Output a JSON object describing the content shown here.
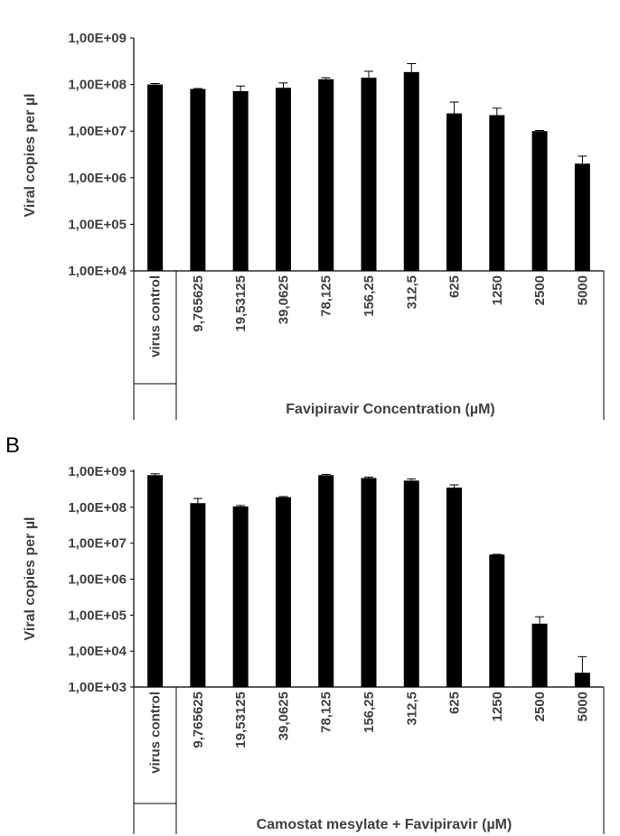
{
  "chart_data": [
    {
      "type": "bar",
      "panel_label": "",
      "ylabel": "Viral copies per  µl",
      "xlabel": "Favipiravir Concentration (µM)",
      "yscale": "log",
      "ylim": [
        10000,
        1000000000
      ],
      "yticks": [
        "1,00E+04",
        "1,00E+05",
        "1,00E+06",
        "1,00E+07",
        "1,00E+08",
        "1,00E+09"
      ],
      "categories": [
        "virus control",
        "9,765625",
        "19,53125",
        "39,0625",
        "78,125",
        "156,25",
        "312,5",
        "625",
        "1250",
        "2500",
        "5000"
      ],
      "values": [
        100000000,
        80000000,
        72000000,
        85000000,
        130000000,
        140000000,
        185000000,
        24000000,
        22000000,
        10000000,
        2000000
      ],
      "error_upper": [
        105000000,
        82000000,
        93000000,
        108000000,
        140000000,
        192000000,
        280000000,
        42000000,
        31000000,
        10300000,
        2900000
      ],
      "grid": false,
      "legend": "none"
    },
    {
      "type": "bar",
      "panel_label": "B",
      "ylabel": "Viral copies per  µl",
      "xlabel": "Camostat mesylate + Favipiravir (µM)",
      "yscale": "log",
      "ylim": [
        1000,
        1000000000
      ],
      "yticks": [
        "1,00E+03",
        "1,00E+04",
        "1,00E+05",
        "1,00E+06",
        "1,00E+07",
        "1,00E+08",
        "1,00E+09"
      ],
      "categories": [
        "virus control",
        "9,765625",
        "19,53125",
        "39,0625",
        "78,125",
        "156,25",
        "312,5",
        "625",
        "1250",
        "2500",
        "5000"
      ],
      "values": [
        780000000,
        130000000,
        105000000,
        190000000,
        780000000,
        650000000,
        550000000,
        350000000,
        4800000,
        58000,
        2500
      ],
      "error_upper": [
        850000000,
        175000000,
        112000000,
        198000000,
        820000000,
        690000000,
        610000000,
        420000000,
        4900000,
        90000,
        7000
      ],
      "grid": false,
      "legend": "none"
    }
  ]
}
